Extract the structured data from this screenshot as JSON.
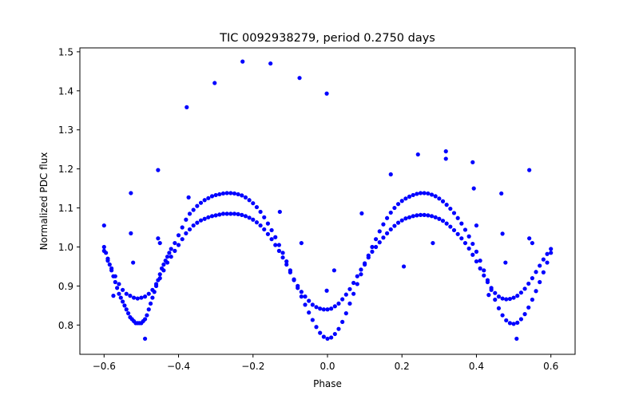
{
  "chart_data": {
    "type": "scatter",
    "title": "TIC 0092938279, period 0.2750 days",
    "xlabel": "Phase",
    "ylabel": "Normalized PDC flux",
    "xlim": [
      -0.665,
      0.665
    ],
    "ylim": [
      0.725,
      1.51
    ],
    "x_ticks": [
      -0.6,
      -0.4,
      -0.2,
      0.0,
      0.2,
      0.4,
      0.6
    ],
    "x_tick_labels": [
      "−0.6",
      "−0.4",
      "−0.2",
      "0.0",
      "0.2",
      "0.4",
      "0.6"
    ],
    "y_ticks": [
      0.8,
      0.9,
      1.0,
      1.1,
      1.2,
      1.3,
      1.4,
      1.5
    ],
    "y_tick_labels": [
      "0.8",
      "0.9",
      "1.0",
      "1.1",
      "1.2",
      "1.3",
      "1.4",
      "1.5"
    ],
    "grid": false,
    "marker_color": "#0000ff",
    "series": [
      {
        "values_description_hidden": true,
        "points": [
          [
            -0.6,
            1.0
          ],
          [
            -0.595,
            0.985
          ],
          [
            -0.59,
            0.97
          ],
          [
            -0.585,
            0.955
          ],
          [
            -0.58,
            0.94
          ],
          [
            -0.575,
            0.925
          ],
          [
            -0.57,
            0.91
          ],
          [
            -0.565,
            0.895
          ],
          [
            -0.56,
            0.88
          ],
          [
            -0.555,
            0.87
          ],
          [
            -0.55,
            0.86
          ],
          [
            -0.545,
            0.85
          ],
          [
            -0.54,
            0.84
          ],
          [
            -0.535,
            0.83
          ],
          [
            -0.53,
            0.82
          ],
          [
            -0.525,
            0.815
          ],
          [
            -0.52,
            0.81
          ],
          [
            -0.515,
            0.805
          ],
          [
            -0.51,
            0.805
          ],
          [
            -0.505,
            0.805
          ],
          [
            -0.5,
            0.805
          ],
          [
            -0.495,
            0.81
          ],
          [
            -0.49,
            0.815
          ],
          [
            -0.485,
            0.825
          ],
          [
            -0.48,
            0.84
          ],
          [
            -0.475,
            0.855
          ],
          [
            -0.47,
            0.87
          ],
          [
            -0.465,
            0.885
          ],
          [
            -0.46,
            0.9
          ],
          [
            -0.455,
            0.915
          ],
          [
            -0.45,
            0.93
          ],
          [
            -0.445,
            0.945
          ],
          [
            -0.44,
            0.955
          ],
          [
            -0.435,
            0.965
          ],
          [
            -0.43,
            0.975
          ],
          [
            -0.425,
            0.985
          ],
          [
            -0.42,
            0.995
          ],
          [
            -0.6,
            0.99
          ],
          [
            -0.59,
            0.965
          ],
          [
            -0.58,
            0.945
          ],
          [
            -0.57,
            0.925
          ],
          [
            -0.56,
            0.905
          ],
          [
            -0.55,
            0.89
          ],
          [
            -0.54,
            0.88
          ],
          [
            -0.53,
            0.875
          ],
          [
            -0.52,
            0.87
          ],
          [
            -0.51,
            0.868
          ],
          [
            -0.5,
            0.87
          ],
          [
            -0.49,
            0.873
          ],
          [
            -0.48,
            0.88
          ],
          [
            -0.47,
            0.89
          ],
          [
            -0.46,
            0.905
          ],
          [
            -0.45,
            0.92
          ],
          [
            -0.44,
            0.94
          ],
          [
            -0.43,
            0.96
          ],
          [
            -0.42,
            0.975
          ],
          [
            -0.41,
            0.99
          ],
          [
            -0.4,
            1.005
          ],
          [
            -0.39,
            1.02
          ],
          [
            -0.38,
            1.035
          ],
          [
            -0.37,
            1.045
          ],
          [
            -0.36,
            1.055
          ],
          [
            -0.35,
            1.062
          ],
          [
            -0.34,
            1.068
          ],
          [
            -0.33,
            1.072
          ],
          [
            -0.32,
            1.076
          ],
          [
            -0.31,
            1.079
          ],
          [
            -0.3,
            1.081
          ],
          [
            -0.29,
            1.083
          ],
          [
            -0.28,
            1.085
          ],
          [
            -0.27,
            1.085
          ],
          [
            -0.26,
            1.085
          ],
          [
            -0.25,
            1.085
          ],
          [
            -0.24,
            1.084
          ],
          [
            -0.23,
            1.082
          ],
          [
            -0.22,
            1.079
          ],
          [
            -0.21,
            1.075
          ],
          [
            -0.2,
            1.07
          ],
          [
            -0.19,
            1.063
          ],
          [
            -0.18,
            1.055
          ],
          [
            -0.17,
            1.045
          ],
          [
            -0.16,
            1.033
          ],
          [
            -0.15,
            1.02
          ],
          [
            -0.14,
            1.005
          ],
          [
            -0.13,
            0.99
          ],
          [
            -0.12,
            0.973
          ],
          [
            -0.11,
            0.955
          ],
          [
            -0.1,
            0.935
          ],
          [
            -0.09,
            0.915
          ],
          [
            -0.08,
            0.9
          ],
          [
            -0.07,
            0.885
          ],
          [
            -0.06,
            0.873
          ],
          [
            -0.05,
            0.862
          ],
          [
            -0.04,
            0.852
          ],
          [
            -0.03,
            0.846
          ],
          [
            -0.02,
            0.842
          ],
          [
            -0.01,
            0.84
          ],
          [
            0.0,
            0.84
          ],
          [
            0.01,
            0.842
          ],
          [
            0.02,
            0.848
          ],
          [
            0.03,
            0.855
          ],
          [
            0.04,
            0.866
          ],
          [
            0.05,
            0.878
          ],
          [
            0.06,
            0.892
          ],
          [
            0.07,
            0.908
          ],
          [
            0.08,
            0.925
          ],
          [
            0.09,
            0.942
          ],
          [
            0.1,
            0.958
          ],
          [
            0.11,
            0.973
          ],
          [
            0.12,
            0.988
          ],
          [
            0.13,
            1.0
          ],
          [
            0.14,
            1.012
          ],
          [
            0.15,
            1.024
          ],
          [
            0.16,
            1.035
          ],
          [
            0.17,
            1.045
          ],
          [
            0.18,
            1.054
          ],
          [
            0.19,
            1.062
          ],
          [
            0.2,
            1.068
          ],
          [
            0.21,
            1.073
          ],
          [
            0.22,
            1.076
          ],
          [
            0.23,
            1.079
          ],
          [
            0.24,
            1.081
          ],
          [
            0.25,
            1.082
          ],
          [
            0.26,
            1.082
          ],
          [
            0.27,
            1.081
          ],
          [
            0.28,
            1.079
          ],
          [
            0.29,
            1.076
          ],
          [
            0.3,
            1.072
          ],
          [
            0.31,
            1.067
          ],
          [
            0.32,
            1.06
          ],
          [
            0.33,
            1.052
          ],
          [
            0.34,
            1.043
          ],
          [
            0.35,
            1.033
          ],
          [
            0.36,
            1.022
          ],
          [
            0.37,
            1.01
          ],
          [
            0.38,
            0.996
          ],
          [
            0.39,
            0.98
          ],
          [
            0.4,
            0.963
          ],
          [
            0.41,
            0.945
          ],
          [
            0.42,
            0.927
          ],
          [
            0.43,
            0.91
          ],
          [
            0.44,
            0.895
          ],
          [
            0.45,
            0.882
          ],
          [
            0.46,
            0.873
          ],
          [
            0.47,
            0.868
          ],
          [
            0.48,
            0.866
          ],
          [
            0.49,
            0.867
          ],
          [
            0.5,
            0.87
          ],
          [
            0.51,
            0.875
          ],
          [
            0.52,
            0.883
          ],
          [
            0.53,
            0.893
          ],
          [
            0.54,
            0.906
          ],
          [
            0.55,
            0.92
          ],
          [
            0.56,
            0.936
          ],
          [
            0.57,
            0.952
          ],
          [
            0.58,
            0.968
          ],
          [
            0.59,
            0.982
          ],
          [
            0.6,
            0.995
          ],
          [
            -0.41,
            1.01
          ],
          [
            -0.4,
            1.03
          ],
          [
            -0.39,
            1.05
          ],
          [
            -0.38,
            1.07
          ],
          [
            -0.37,
            1.085
          ],
          [
            -0.36,
            1.095
          ],
          [
            -0.35,
            1.105
          ],
          [
            -0.34,
            1.113
          ],
          [
            -0.33,
            1.12
          ],
          [
            -0.32,
            1.125
          ],
          [
            -0.31,
            1.13
          ],
          [
            -0.3,
            1.133
          ],
          [
            -0.29,
            1.135
          ],
          [
            -0.28,
            1.137
          ],
          [
            -0.27,
            1.138
          ],
          [
            -0.26,
            1.138
          ],
          [
            -0.25,
            1.137
          ],
          [
            -0.24,
            1.135
          ],
          [
            -0.23,
            1.132
          ],
          [
            -0.22,
            1.127
          ],
          [
            -0.21,
            1.12
          ],
          [
            -0.2,
            1.112
          ],
          [
            -0.19,
            1.102
          ],
          [
            -0.18,
            1.09
          ],
          [
            -0.17,
            1.076
          ],
          [
            -0.16,
            1.06
          ],
          [
            -0.15,
            1.043
          ],
          [
            -0.14,
            1.025
          ],
          [
            -0.13,
            1.005
          ],
          [
            -0.12,
            0.985
          ],
          [
            -0.11,
            0.963
          ],
          [
            -0.1,
            0.94
          ],
          [
            -0.09,
            0.917
          ],
          [
            -0.08,
            0.895
          ],
          [
            -0.07,
            0.873
          ],
          [
            -0.06,
            0.852
          ],
          [
            -0.05,
            0.832
          ],
          [
            -0.04,
            0.813
          ],
          [
            -0.03,
            0.795
          ],
          [
            -0.02,
            0.78
          ],
          [
            -0.01,
            0.77
          ],
          [
            0.0,
            0.765
          ],
          [
            0.01,
            0.768
          ],
          [
            0.02,
            0.777
          ],
          [
            0.03,
            0.79
          ],
          [
            0.04,
            0.808
          ],
          [
            0.05,
            0.83
          ],
          [
            0.06,
            0.855
          ],
          [
            0.07,
            0.88
          ],
          [
            0.08,
            0.905
          ],
          [
            0.09,
            0.93
          ],
          [
            0.1,
            0.955
          ],
          [
            0.11,
            0.978
          ],
          [
            0.12,
            1.0
          ],
          [
            0.13,
            1.02
          ],
          [
            0.14,
            1.04
          ],
          [
            0.15,
            1.058
          ],
          [
            0.16,
            1.074
          ],
          [
            0.17,
            1.088
          ],
          [
            0.18,
            1.1
          ],
          [
            0.19,
            1.11
          ],
          [
            0.2,
            1.118
          ],
          [
            0.21,
            1.124
          ],
          [
            0.22,
            1.129
          ],
          [
            0.23,
            1.133
          ],
          [
            0.24,
            1.136
          ],
          [
            0.25,
            1.138
          ],
          [
            0.26,
            1.138
          ],
          [
            0.27,
            1.137
          ],
          [
            0.28,
            1.134
          ],
          [
            0.29,
            1.13
          ],
          [
            0.3,
            1.124
          ],
          [
            0.31,
            1.117
          ],
          [
            0.32,
            1.108
          ],
          [
            0.33,
            1.098
          ],
          [
            0.34,
            1.087
          ],
          [
            0.35,
            1.074
          ],
          [
            0.36,
            1.06
          ],
          [
            0.37,
            1.044
          ],
          [
            0.38,
            1.027
          ],
          [
            0.39,
            1.008
          ],
          [
            0.4,
            0.988
          ],
          [
            0.41,
            0.965
          ],
          [
            0.42,
            0.94
          ],
          [
            0.43,
            0.915
          ],
          [
            0.44,
            0.89
          ],
          [
            0.45,
            0.865
          ],
          [
            0.46,
            0.843
          ],
          [
            0.47,
            0.825
          ],
          [
            0.48,
            0.812
          ],
          [
            0.49,
            0.805
          ],
          [
            0.5,
            0.803
          ],
          [
            0.51,
            0.806
          ],
          [
            0.52,
            0.815
          ],
          [
            0.53,
            0.828
          ],
          [
            0.54,
            0.845
          ],
          [
            0.55,
            0.865
          ],
          [
            0.56,
            0.887
          ],
          [
            0.57,
            0.91
          ],
          [
            0.58,
            0.935
          ],
          [
            0.59,
            0.96
          ],
          [
            0.6,
            0.985
          ],
          [
            -0.6,
            1.055
          ],
          [
            -0.575,
            0.875
          ],
          [
            -0.528,
            1.138
          ],
          [
            -0.528,
            1.035
          ],
          [
            -0.522,
            0.96
          ],
          [
            -0.49,
            0.765
          ],
          [
            -0.455,
            1.197
          ],
          [
            -0.455,
            1.022
          ],
          [
            -0.45,
            1.01
          ],
          [
            -0.378,
            1.358
          ],
          [
            -0.373,
            1.127
          ],
          [
            -0.303,
            1.42
          ],
          [
            -0.228,
            1.475
          ],
          [
            -0.153,
            1.47
          ],
          [
            -0.128,
            1.09
          ],
          [
            -0.075,
            1.433
          ],
          [
            -0.07,
            1.01
          ],
          [
            -0.002,
            1.393
          ],
          [
            -0.002,
            0.888
          ],
          [
            0.018,
            0.94
          ],
          [
            0.092,
            1.086
          ],
          [
            0.17,
            1.186
          ],
          [
            0.205,
            0.95
          ],
          [
            0.243,
            1.237
          ],
          [
            0.283,
            1.01
          ],
          [
            0.318,
            1.245
          ],
          [
            0.318,
            1.226
          ],
          [
            0.39,
            1.217
          ],
          [
            0.393,
            1.15
          ],
          [
            0.4,
            1.055
          ],
          [
            0.433,
            0.877
          ],
          [
            0.467,
            1.137
          ],
          [
            0.47,
            1.034
          ],
          [
            0.478,
            0.96
          ],
          [
            0.508,
            0.765
          ],
          [
            0.542,
            1.197
          ],
          [
            0.542,
            1.022
          ],
          [
            0.55,
            1.01
          ]
        ]
      }
    ]
  }
}
